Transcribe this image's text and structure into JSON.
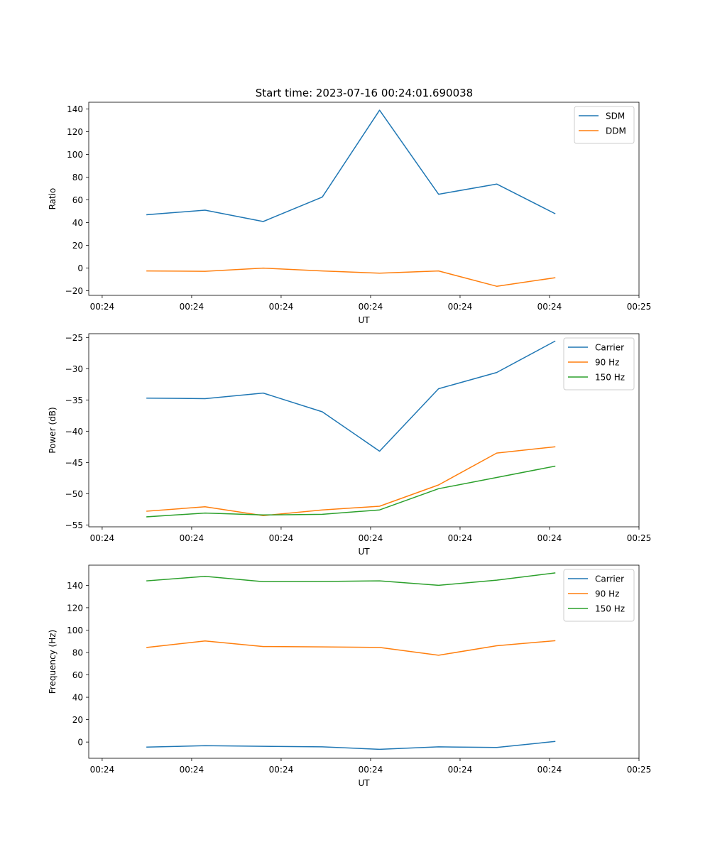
{
  "figure_title": "Start time: 2023-07-16 00:24:01.690038",
  "chart_data": [
    {
      "type": "line",
      "title": "Start time: 2023-07-16 00:24:01.690038",
      "xlabel": "UT",
      "ylabel": "Ratio",
      "x_ticks": [
        0,
        1,
        2,
        3,
        4,
        5,
        6
      ],
      "x_tick_labels": [
        "00:24",
        "00:24",
        "00:24",
        "00:24",
        "00:24",
        "00:24",
        "00:25"
      ],
      "xlim": [
        -0.15,
        6.0
      ],
      "x": [
        0.5,
        1.15,
        1.8,
        2.46,
        3.1,
        3.76,
        4.41,
        5.06
      ],
      "y_ticks": [
        -20,
        0,
        20,
        40,
        60,
        80,
        100,
        120,
        140
      ],
      "y_tick_labels": [
        "−20",
        "0",
        "20",
        "40",
        "60",
        "80",
        "100",
        "120",
        "140"
      ],
      "ylim": [
        -24,
        146
      ],
      "legend_position": "top-right",
      "series": [
        {
          "name": "SDM",
          "color": "#1f77b4",
          "values": [
            47,
            51,
            41,
            62.5,
            139,
            65,
            74,
            48
          ]
        },
        {
          "name": "DDM",
          "color": "#ff7f0e",
          "values": [
            -2.5,
            -2.8,
            0,
            -2.5,
            -4.5,
            -2.5,
            -16,
            -8.5
          ]
        }
      ]
    },
    {
      "type": "line",
      "title": "",
      "xlabel": "UT",
      "ylabel": "Power (dB)",
      "x_ticks": [
        0,
        1,
        2,
        3,
        4,
        5,
        6
      ],
      "x_tick_labels": [
        "00:24",
        "00:24",
        "00:24",
        "00:24",
        "00:24",
        "00:24",
        "00:25"
      ],
      "xlim": [
        -0.15,
        6.0
      ],
      "x": [
        0.5,
        1.15,
        1.8,
        2.46,
        3.1,
        3.76,
        4.41,
        5.06
      ],
      "y_ticks": [
        -55,
        -50,
        -45,
        -40,
        -35,
        -30,
        -25
      ],
      "y_tick_labels": [
        "−55",
        "−50",
        "−45",
        "−40",
        "−35",
        "−30",
        "−25"
      ],
      "ylim": [
        -55.3,
        -24.4
      ],
      "legend_position": "top-right",
      "series": [
        {
          "name": "Carrier",
          "color": "#1f77b4",
          "values": [
            -34.7,
            -34.8,
            -33.9,
            -36.9,
            -43.2,
            -33.2,
            -30.6,
            -25.6
          ]
        },
        {
          "name": "90 Hz",
          "color": "#ff7f0e",
          "values": [
            -52.8,
            -52.1,
            -53.5,
            -52.6,
            -52.0,
            -48.6,
            -43.5,
            -42.5
          ]
        },
        {
          "name": "150 Hz",
          "color": "#2ca02c",
          "values": [
            -53.7,
            -53.1,
            -53.4,
            -53.3,
            -52.6,
            -49.2,
            -47.4,
            -45.6
          ]
        }
      ]
    },
    {
      "type": "line",
      "title": "",
      "xlabel": "UT",
      "ylabel": "Frequency (Hz)",
      "x_ticks": [
        0,
        1,
        2,
        3,
        4,
        5,
        6
      ],
      "x_tick_labels": [
        "00:24",
        "00:24",
        "00:24",
        "00:24",
        "00:24",
        "00:24",
        "00:25"
      ],
      "xlim": [
        -0.15,
        6.0
      ],
      "x": [
        0.5,
        1.15,
        1.8,
        2.46,
        3.1,
        3.76,
        4.41,
        5.06
      ],
      "y_ticks": [
        0,
        20,
        40,
        60,
        80,
        100,
        120,
        140
      ],
      "y_tick_labels": [
        "0",
        "20",
        "40",
        "60",
        "80",
        "100",
        "120",
        "140"
      ],
      "ylim": [
        -14.5,
        158
      ],
      "legend_position": "top-right",
      "series": [
        {
          "name": "Carrier",
          "color": "#1f77b4",
          "values": [
            -4.5,
            -3.3,
            -3.8,
            -4.3,
            -6.5,
            -4.3,
            -4.8,
            0.5
          ]
        },
        {
          "name": "90 Hz",
          "color": "#ff7f0e",
          "values": [
            84.5,
            90.3,
            85.3,
            85.0,
            84.5,
            77.5,
            86.0,
            90.5
          ]
        },
        {
          "name": "150 Hz",
          "color": "#2ca02c",
          "values": [
            144,
            148,
            143.2,
            143.4,
            144,
            140,
            144.6,
            151
          ]
        }
      ]
    }
  ]
}
